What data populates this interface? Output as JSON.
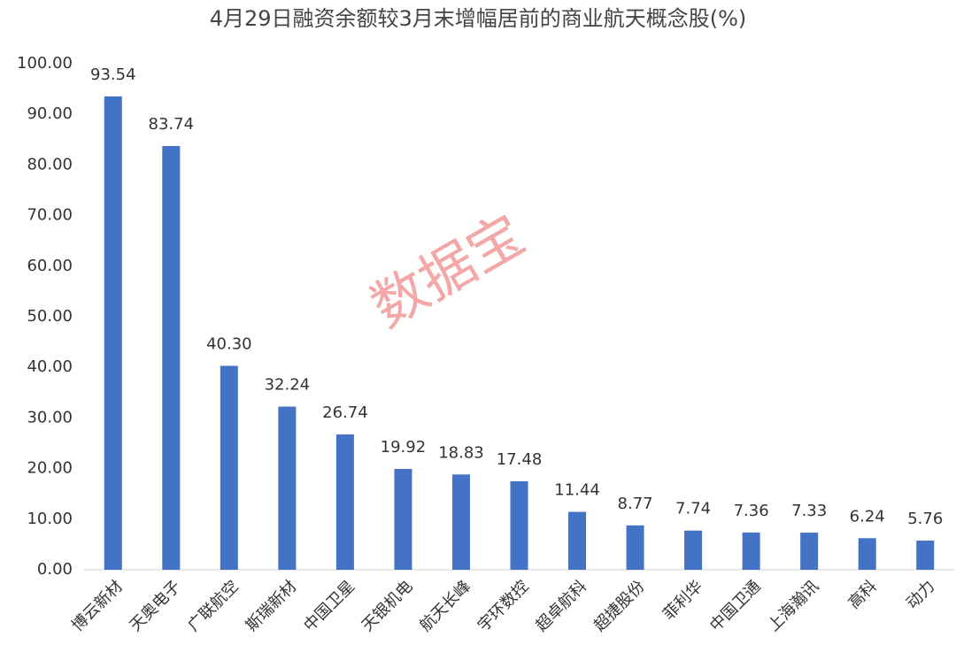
{
  "chart_data": {
    "type": "bar",
    "title": "4月29日融资余额较3月末增幅居前的商业航天概念股(%)",
    "categories": [
      "博云新材",
      "天奥电子",
      "广联航空",
      "斯瑞新材",
      "中国卫星",
      "天银机电",
      "航天长峰",
      "宇环数控",
      "超卓航科",
      "超捷股份",
      "菲利华",
      "中国卫通",
      "上海瀚讯",
      "高科",
      "动力"
    ],
    "values": [
      93.54,
      83.74,
      40.3,
      32.24,
      26.74,
      19.92,
      18.83,
      17.48,
      11.44,
      8.77,
      7.74,
      7.36,
      7.33,
      6.24,
      5.76
    ],
    "value_labels": [
      "93.54",
      "83.74",
      "40.30",
      "32.24",
      "26.74",
      "19.92",
      "18.83",
      "17.48",
      "11.44",
      "8.77",
      "7.74",
      "7.36",
      "7.33",
      "6.24",
      "5.76"
    ],
    "color": "#4472c4",
    "ylim": [
      0,
      100
    ],
    "yticks": [
      {
        "value": 0,
        "label": "0.00"
      },
      {
        "value": 10,
        "label": "10.00"
      },
      {
        "value": 20,
        "label": "20.00"
      },
      {
        "value": 30,
        "label": "30.00"
      },
      {
        "value": 40,
        "label": "40.00"
      },
      {
        "value": 50,
        "label": "50.00"
      },
      {
        "value": 60,
        "label": "60.00"
      },
      {
        "value": 70,
        "label": "70.00"
      },
      {
        "value": 80,
        "label": "80.00"
      },
      {
        "value": 90,
        "label": "90.00"
      },
      {
        "value": 100,
        "label": "100.00"
      }
    ],
    "grid": false,
    "watermark": "数据宝"
  }
}
